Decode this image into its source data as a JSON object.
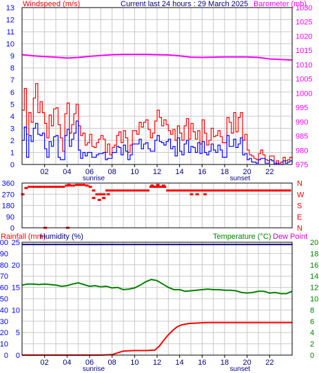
{
  "header": {
    "windspeed_label": "Windspeed (m/s)",
    "title": "Current last 24 hours : 29 March 2025",
    "barometer_label": "Barometer (mb)"
  },
  "panel3_labels": {
    "rainfall": "Rainfall (mm)",
    "humidity": "Humidity (%)",
    "temperature": "Temperature (°C)",
    "dewpoint": "Dew Point"
  },
  "colors": {
    "background": "#ffffff",
    "grid": "#c8c8c8",
    "wind_gust": "#ff0000",
    "wind_avg": "#0000ff",
    "barometer": "#ff00ff",
    "direction": "#ff0000",
    "humidity": "#000080",
    "temperature": "#008000",
    "rainfall": "#ff0000",
    "dewpoint": "#cc00cc",
    "left_axis": "#0000ff",
    "right_axis_baro": "#ff00ff",
    "right_axis_temp": "#008000"
  },
  "x_axis": {
    "hour_ticks": [
      "02",
      "04",
      "06",
      "08",
      "10",
      "12",
      "14",
      "16",
      "18",
      "20",
      "22"
    ],
    "sunrise": "sunrise",
    "sunset": "sunset"
  },
  "chart_data": [
    {
      "type": "line",
      "name": "wind-and-barometer",
      "x_range_hours": [
        0,
        24
      ],
      "left_axis": {
        "label": "Windspeed (m/s)",
        "ylim": [
          0,
          13
        ],
        "ticks": [
          "0",
          "1",
          "2",
          "3",
          "4",
          "5",
          "6",
          "7",
          "8",
          "9",
          "10",
          "11",
          "12",
          "13"
        ]
      },
      "right_axis": {
        "label": "Barometer (mb)",
        "ylim": [
          975,
          1030
        ],
        "ticks": [
          "975",
          "980",
          "985",
          "990",
          "995",
          "1000",
          "1005",
          "1010",
          "1015",
          "1020",
          "1025",
          "1030"
        ]
      },
      "grid": true,
      "sunrise_hour": 6.0,
      "sunset_hour": 19.0,
      "series": [
        {
          "name": "Windspeed (m/s)",
          "axis": "left",
          "x": [
            0.0,
            0.2,
            0.4,
            0.6,
            0.8,
            1.0,
            1.2,
            1.4,
            1.6,
            1.8,
            2.0,
            2.2,
            2.4,
            2.6,
            2.8,
            3.0,
            3.2,
            3.4,
            3.6,
            3.8,
            4.0,
            4.2,
            4.4,
            4.6,
            4.8,
            5.0,
            5.2,
            5.4,
            5.6,
            5.8,
            6.0,
            6.2,
            6.4,
            6.6,
            6.8,
            7.0,
            7.2,
            7.4,
            7.6,
            7.8,
            8.0,
            8.2,
            8.4,
            8.6,
            8.8,
            9.0,
            9.2,
            9.4,
            9.6,
            9.8,
            10.0,
            10.2,
            10.4,
            10.6,
            10.8,
            11.0,
            11.2,
            11.4,
            11.6,
            11.8,
            12.0,
            12.2,
            12.4,
            12.6,
            12.8,
            13.0,
            13.2,
            13.4,
            13.6,
            13.8,
            14.0,
            14.2,
            14.4,
            14.6,
            14.8,
            15.0,
            15.2,
            15.4,
            15.6,
            15.8,
            16.0,
            16.2,
            16.4,
            16.6,
            16.8,
            17.0,
            17.2,
            17.4,
            17.6,
            17.8,
            18.0,
            18.2,
            18.4,
            18.6,
            18.8,
            19.0,
            19.2,
            19.4,
            19.6,
            19.8,
            20.0,
            20.2,
            20.4,
            20.6,
            20.8,
            21.0,
            21.2,
            21.4,
            21.6,
            21.8,
            22.0,
            22.2,
            22.4,
            22.6,
            22.8,
            23.0,
            23.2,
            23.4,
            23.6,
            23.8,
            24.0
          ],
          "y": [
            4.5,
            6.3,
            2.5,
            4.3,
            3.5,
            5.5,
            6.7,
            4.3,
            5.2,
            4.3,
            3.4,
            2.2,
            4.1,
            3.2,
            4.6,
            4.7,
            3.3,
            2.2,
            1.1,
            4.2,
            5.1,
            2.6,
            3.3,
            4.2,
            5.0,
            3.2,
            2.4,
            2.6,
            1.6,
            1.8,
            2.5,
            1.5,
            1.4,
            1.8,
            2.1,
            2.4,
            2.1,
            1.0,
            1.7,
            0.8,
            1.4,
            1.6,
            2.4,
            2.7,
            1.8,
            2.8,
            2.2,
            1.0,
            1.6,
            2.8,
            2.8,
            2.5,
            3.5,
            3.1,
            3.5,
            3.7,
            2.9,
            2.2,
            2.6,
            3.6,
            4.5,
            3.9,
            3.2,
            3.7,
            3.3,
            2.8,
            2.5,
            2.9,
            2.0,
            3.2,
            2.6,
            2.0,
            3.2,
            3.8,
            2.1,
            3.4,
            2.7,
            2.1,
            2.8,
            1.7,
            3.7,
            2.6,
            1.6,
            2.0,
            3.0,
            2.3,
            2.4,
            2.8,
            2.3,
            1.8,
            1.8,
            3.9,
            3.5,
            2.6,
            4.3,
            2.7,
            3.9,
            4.3,
            2.0,
            2.5,
            1.2,
            0.8,
            0.7,
            0.5,
            0.4,
            0.9,
            1.2,
            0.8,
            0.4,
            0.3,
            0.7,
            0.7,
            0.1,
            0.3,
            0.1,
            0.2,
            0.6,
            0.3,
            0.4,
            0.6,
            0.2
          ]
        },
        {
          "name": "Average",
          "axis": "left",
          "x": [
            0.0,
            0.2,
            0.4,
            0.6,
            0.8,
            1.0,
            1.2,
            1.4,
            1.6,
            1.8,
            2.0,
            2.2,
            2.4,
            2.6,
            2.8,
            3.0,
            3.2,
            3.4,
            3.6,
            3.8,
            4.0,
            4.2,
            4.4,
            4.6,
            4.8,
            5.0,
            5.2,
            5.4,
            5.6,
            5.8,
            6.0,
            6.2,
            6.4,
            6.6,
            6.8,
            7.0,
            7.2,
            7.4,
            7.6,
            7.8,
            8.0,
            8.2,
            8.4,
            8.6,
            8.8,
            9.0,
            9.2,
            9.4,
            9.6,
            9.8,
            10.0,
            10.2,
            10.4,
            10.6,
            10.8,
            11.0,
            11.2,
            11.4,
            11.6,
            11.8,
            12.0,
            12.2,
            12.4,
            12.6,
            12.8,
            13.0,
            13.2,
            13.4,
            13.6,
            13.8,
            14.0,
            14.2,
            14.4,
            14.6,
            14.8,
            15.0,
            15.2,
            15.4,
            15.6,
            15.8,
            16.0,
            16.2,
            16.4,
            16.6,
            16.8,
            17.0,
            17.2,
            17.4,
            17.6,
            17.8,
            18.0,
            18.2,
            18.4,
            18.6,
            18.8,
            19.0,
            19.2,
            19.4,
            19.6,
            19.8,
            20.0,
            20.2,
            20.4,
            20.6,
            20.8,
            21.0,
            21.2,
            21.4,
            21.6,
            21.8,
            22.0,
            22.2,
            22.4,
            22.6,
            22.8,
            23.0,
            23.2,
            23.4,
            23.6,
            23.8,
            24.0
          ],
          "y": [
            2.0,
            3.1,
            0.6,
            2.4,
            1.9,
            3.0,
            3.4,
            2.5,
            2.4,
            2.6,
            1.3,
            0.6,
            1.9,
            1.5,
            2.3,
            2.4,
            0.6,
            0.4,
            0.4,
            2.4,
            2.9,
            1.5,
            2.1,
            2.6,
            3.6,
            1.2,
            0.5,
            1.0,
            0.7,
            1.0,
            1.0,
            0.6,
            0.6,
            0.8,
            0.9,
            0.9,
            1.0,
            0.4,
            0.5,
            0.5,
            1.0,
            1.0,
            1.5,
            1.4,
            0.8,
            1.6,
            1.1,
            0.4,
            0.8,
            1.7,
            1.7,
            1.7,
            2.1,
            1.3,
            1.7,
            1.8,
            1.3,
            1.1,
            1.1,
            2.0,
            2.4,
            1.9,
            1.8,
            1.6,
            1.9,
            2.1,
            1.3,
            1.5,
            0.7,
            2.2,
            1.1,
            0.8,
            1.7,
            2.0,
            1.0,
            1.5,
            1.4,
            1.0,
            1.8,
            0.9,
            1.9,
            1.0,
            0.8,
            1.1,
            1.7,
            1.2,
            1.0,
            1.6,
            1.2,
            0.6,
            0.6,
            2.4,
            1.5,
            1.5,
            2.1,
            1.4,
            1.7,
            2.2,
            0.8,
            0.9,
            0.4,
            0.5,
            0.2,
            0.2,
            0.1,
            0.4,
            0.5,
            0.5,
            0.1,
            0.1,
            0.4,
            0.3,
            0.0,
            0.1,
            0.0,
            0.0,
            0.3,
            0.1,
            0.2,
            0.3,
            0.1
          ]
        },
        {
          "name": "Barometer (mb)",
          "axis": "right",
          "x": [
            0,
            1,
            2,
            3,
            4,
            5,
            6,
            7,
            8,
            9,
            10,
            11,
            12,
            13,
            14,
            15,
            16,
            17,
            18,
            19,
            20,
            21,
            22,
            23,
            24
          ],
          "y": [
            1013.5,
            1013.1,
            1012.8,
            1012.6,
            1012.3,
            1012.5,
            1012.9,
            1013.2,
            1013.5,
            1013.6,
            1013.6,
            1013.6,
            1013.5,
            1013.4,
            1013.1,
            1012.6,
            1012.5,
            1012.6,
            1012.7,
            1012.7,
            1012.7,
            1012.5,
            1012.0,
            1011.8,
            1011.6
          ]
        }
      ]
    },
    {
      "type": "scatter",
      "name": "wind-direction",
      "x_range_hours": [
        0,
        24
      ],
      "left_axis": {
        "ylim": [
          0,
          360
        ],
        "ticks": [
          "0",
          "90",
          "180",
          "270",
          "360"
        ]
      },
      "right_axis": {
        "ticks": [
          "N",
          "E",
          "S",
          "W",
          "N"
        ]
      },
      "series": [
        {
          "name": "Direction",
          "x": [
            0.0,
            0.3,
            0.6,
            0.9,
            1.2,
            1.5,
            1.8,
            2.1,
            2.4,
            2.7,
            3.0,
            3.3,
            3.6,
            3.9,
            4.2,
            4.5,
            4.8,
            5.1,
            5.4,
            5.7,
            6.0,
            6.3,
            6.6,
            6.9,
            7.2,
            7.5,
            7.8,
            8.1,
            8.4,
            8.7,
            9.0,
            9.3,
            9.6,
            9.9,
            10.2,
            10.5,
            10.8,
            11.1,
            11.4,
            11.7,
            12.0,
            12.3,
            12.6,
            12.9,
            13.2,
            13.5,
            13.8,
            14.1,
            14.4,
            14.7,
            15.0,
            15.3,
            15.6,
            15.9,
            16.2,
            16.5,
            16.8,
            17.1,
            17.4,
            17.7,
            18.0,
            18.3,
            18.6,
            18.9,
            19.2,
            19.5,
            19.8,
            20.1,
            20.4,
            20.7,
            21.0,
            21.3,
            21.6,
            21.9,
            22.2,
            22.5,
            22.8,
            23.1,
            23.4,
            23.7,
            2.0,
            4.0,
            6.3,
            6.8,
            7.2,
            7.6,
            11.5,
            12.0,
            12.5,
            15.0,
            15.5,
            16.2,
            4.1
          ],
          "y": [
            270,
            320,
            330,
            330,
            330,
            330,
            330,
            330,
            330,
            330,
            330,
            330,
            330,
            340,
            340,
            340,
            345,
            345,
            345,
            340,
            330,
            300,
            270,
            270,
            270,
            300,
            300,
            300,
            300,
            300,
            300,
            300,
            300,
            300,
            300,
            300,
            300,
            300,
            330,
            330,
            330,
            330,
            330,
            300,
            300,
            300,
            300,
            300,
            300,
            300,
            300,
            300,
            300,
            300,
            300,
            300,
            300,
            300,
            300,
            300,
            300,
            300,
            300,
            300,
            300,
            300,
            300,
            300,
            300,
            300,
            300,
            300,
            300,
            300,
            300,
            300,
            300,
            300,
            300,
            300,
            0,
            0,
            240,
            225,
            240,
            270,
            340,
            345,
            340,
            270,
            270,
            270,
            345
          ]
        }
      ]
    },
    {
      "type": "line",
      "name": "rain-humidity-temperature",
      "x_range_hours": [
        0,
        24
      ],
      "left_axis": {
        "label": "Rainfall (mm) / Humidity (%)",
        "humidity_ticks": [
          "0",
          "10",
          "20",
          "30",
          "40",
          "50",
          "60",
          "70",
          "80",
          "90",
          "100"
        ],
        "rain_ticks": [
          "0",
          "5",
          "10",
          "15",
          "20",
          "25"
        ],
        "humidity_ylim": [
          0,
          100
        ],
        "rain_ylim": [
          0,
          25
        ]
      },
      "right_axis": {
        "label": "Temperature (°C)",
        "ylim": [
          0,
          20
        ],
        "ticks": [
          "0",
          "2",
          "4",
          "6",
          "8",
          "10",
          "12",
          "14",
          "16",
          "18",
          "20"
        ]
      },
      "sunrise_hour": 6.0,
      "sunset_hour": 19.0,
      "series": [
        {
          "name": "Temperature (°C)",
          "x": [
            0,
            0.5,
            1,
            1.5,
            2,
            2.5,
            3,
            3.5,
            4,
            4.5,
            5,
            5.5,
            6,
            6.5,
            7,
            7.5,
            8,
            8.5,
            9,
            9.5,
            10,
            10.5,
            11,
            11.5,
            12,
            12.5,
            13,
            13.5,
            14,
            14.5,
            15,
            15.5,
            16,
            16.5,
            17,
            17.5,
            18,
            18.5,
            19,
            19.5,
            20,
            20.5,
            21,
            21.5,
            22,
            22.5,
            23,
            23.5,
            24
          ],
          "y": [
            12.4,
            12.6,
            12.6,
            12.5,
            12.6,
            12.5,
            12.4,
            12.2,
            12.3,
            12.6,
            12.8,
            12.5,
            12.2,
            12.3,
            12.1,
            12.2,
            11.9,
            12.0,
            11.6,
            11.7,
            11.9,
            12.4,
            13.0,
            13.4,
            13.2,
            12.6,
            12.0,
            11.6,
            11.6,
            11.3,
            11.4,
            11.5,
            11.6,
            11.7,
            11.6,
            11.6,
            11.5,
            11.5,
            11.4,
            11.1,
            11.0,
            11.1,
            11.3,
            11.3,
            11.0,
            11.1,
            10.9,
            10.9,
            11.3
          ]
        },
        {
          "name": "Humidity (%)",
          "x": [
            0,
            24
          ],
          "y": [
            98,
            98
          ]
        },
        {
          "name": "Rainfall (mm)",
          "x": [
            0,
            3,
            6,
            7,
            8,
            9,
            10,
            11,
            11.8,
            12.2,
            12.6,
            13.0,
            13.4,
            13.8,
            14.2,
            14.8,
            15.6,
            16.4,
            18,
            20,
            22,
            24
          ],
          "y": [
            0.0,
            0.0,
            0.0,
            0.0,
            0.1,
            0.9,
            1.0,
            1.0,
            1.1,
            2.0,
            3.3,
            4.5,
            5.5,
            6.3,
            6.7,
            7.0,
            7.1,
            7.2,
            7.2,
            7.2,
            7.2,
            7.2
          ]
        }
      ]
    }
  ]
}
